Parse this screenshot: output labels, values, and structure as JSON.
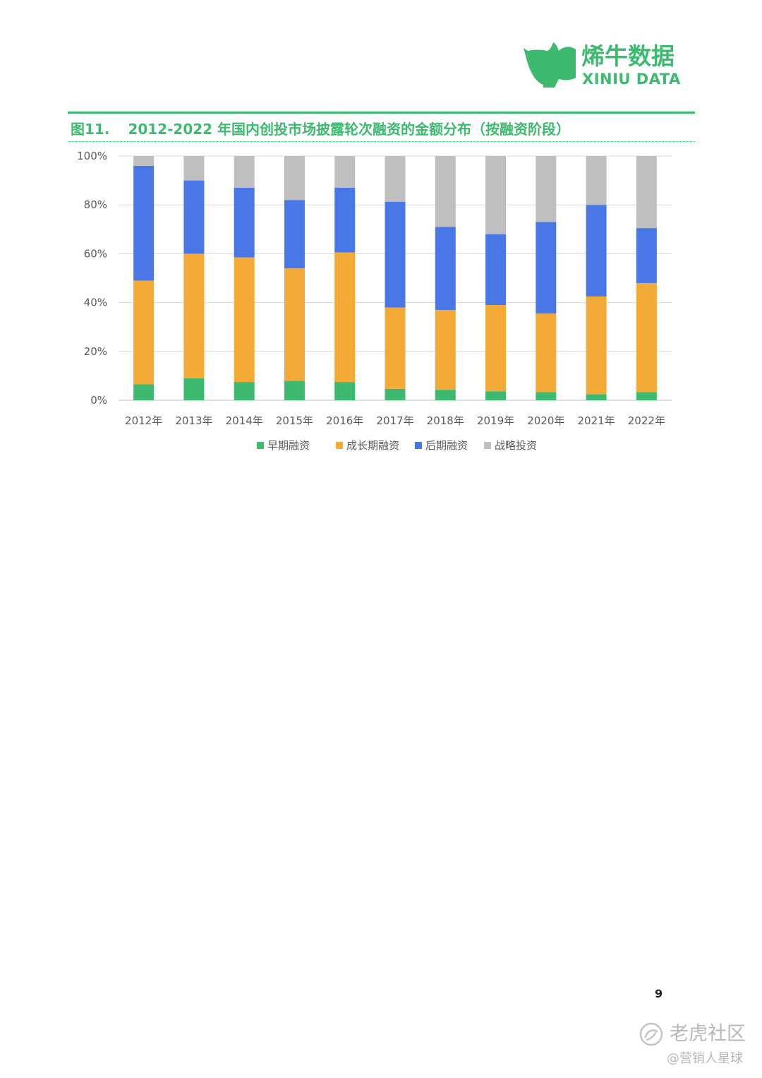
{
  "brand": {
    "name_cn": "烯牛数据",
    "name_en": "XINIU DATA",
    "color": "#3dba6f"
  },
  "figure": {
    "number": "图11.",
    "title": "2012-2022 年国内创投市场披露轮次融资的金额分布（按融资阶段）"
  },
  "chart_data": {
    "type": "bar",
    "stacked": true,
    "percent": true,
    "title": "2012-2022 年国内创投市场披露轮次融资的金额分布（按融资阶段）",
    "categories": [
      "2012年",
      "2013年",
      "2014年",
      "2015年",
      "2016年",
      "2017年",
      "2018年",
      "2019年",
      "2020年",
      "2021年",
      "2022年"
    ],
    "series": [
      {
        "name": "早期融资",
        "color": "#3dba6f",
        "values": [
          6.5,
          9,
          7.5,
          8,
          7.5,
          4.7,
          4.3,
          3.7,
          3.4,
          2.5,
          3.4
        ]
      },
      {
        "name": "成长期融资",
        "color": "#f4aa37",
        "values": [
          42.5,
          51,
          51,
          46,
          53,
          33.3,
          32.7,
          35.3,
          32.1,
          40,
          44.6
        ]
      },
      {
        "name": "后期融资",
        "color": "#4a77e6",
        "values": [
          47,
          30,
          28.5,
          28,
          26.5,
          43.3,
          34,
          29,
          37.5,
          37.5,
          22.5
        ]
      },
      {
        "name": "战略投资",
        "color": "#bfbfbf",
        "values": [
          4,
          10,
          13,
          18,
          13,
          18.7,
          29,
          32,
          27,
          20,
          29.5
        ]
      }
    ],
    "yticks": [
      "0%",
      "20%",
      "40%",
      "60%",
      "80%",
      "100%"
    ],
    "ylim": [
      0,
      100
    ],
    "grid": true,
    "legend": "bottom"
  },
  "page": {
    "number": "9"
  },
  "watermark": {
    "main": "老虎社区",
    "sub": "@营销人星球"
  }
}
